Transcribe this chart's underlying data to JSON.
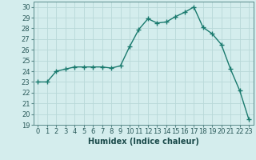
{
  "x": [
    0,
    1,
    2,
    3,
    4,
    5,
    6,
    7,
    8,
    9,
    10,
    11,
    12,
    13,
    14,
    15,
    16,
    17,
    18,
    19,
    20,
    21,
    22,
    23
  ],
  "y": [
    23,
    23,
    24,
    24.2,
    24.4,
    24.4,
    24.4,
    24.4,
    24.3,
    24.5,
    26.3,
    27.9,
    28.9,
    28.5,
    28.6,
    29.1,
    29.5,
    30.0,
    28.1,
    27.5,
    26.5,
    24.2,
    22.2,
    19.5
  ],
  "line_color": "#1a7a6e",
  "marker": "+",
  "marker_size": 4,
  "linewidth": 1.0,
  "xlabel": "Humidex (Indice chaleur)",
  "xlim": [
    -0.5,
    23.5
  ],
  "ylim": [
    19,
    30.5
  ],
  "yticks": [
    19,
    20,
    21,
    22,
    23,
    24,
    25,
    26,
    27,
    28,
    29,
    30
  ],
  "xticks": [
    0,
    1,
    2,
    3,
    4,
    5,
    6,
    7,
    8,
    9,
    10,
    11,
    12,
    13,
    14,
    15,
    16,
    17,
    18,
    19,
    20,
    21,
    22,
    23
  ],
  "bg_color": "#d4eded",
  "grid_color": "#b8d8d8",
  "xlabel_fontsize": 7,
  "tick_fontsize": 6,
  "marker_color": "#1a7a6e"
}
